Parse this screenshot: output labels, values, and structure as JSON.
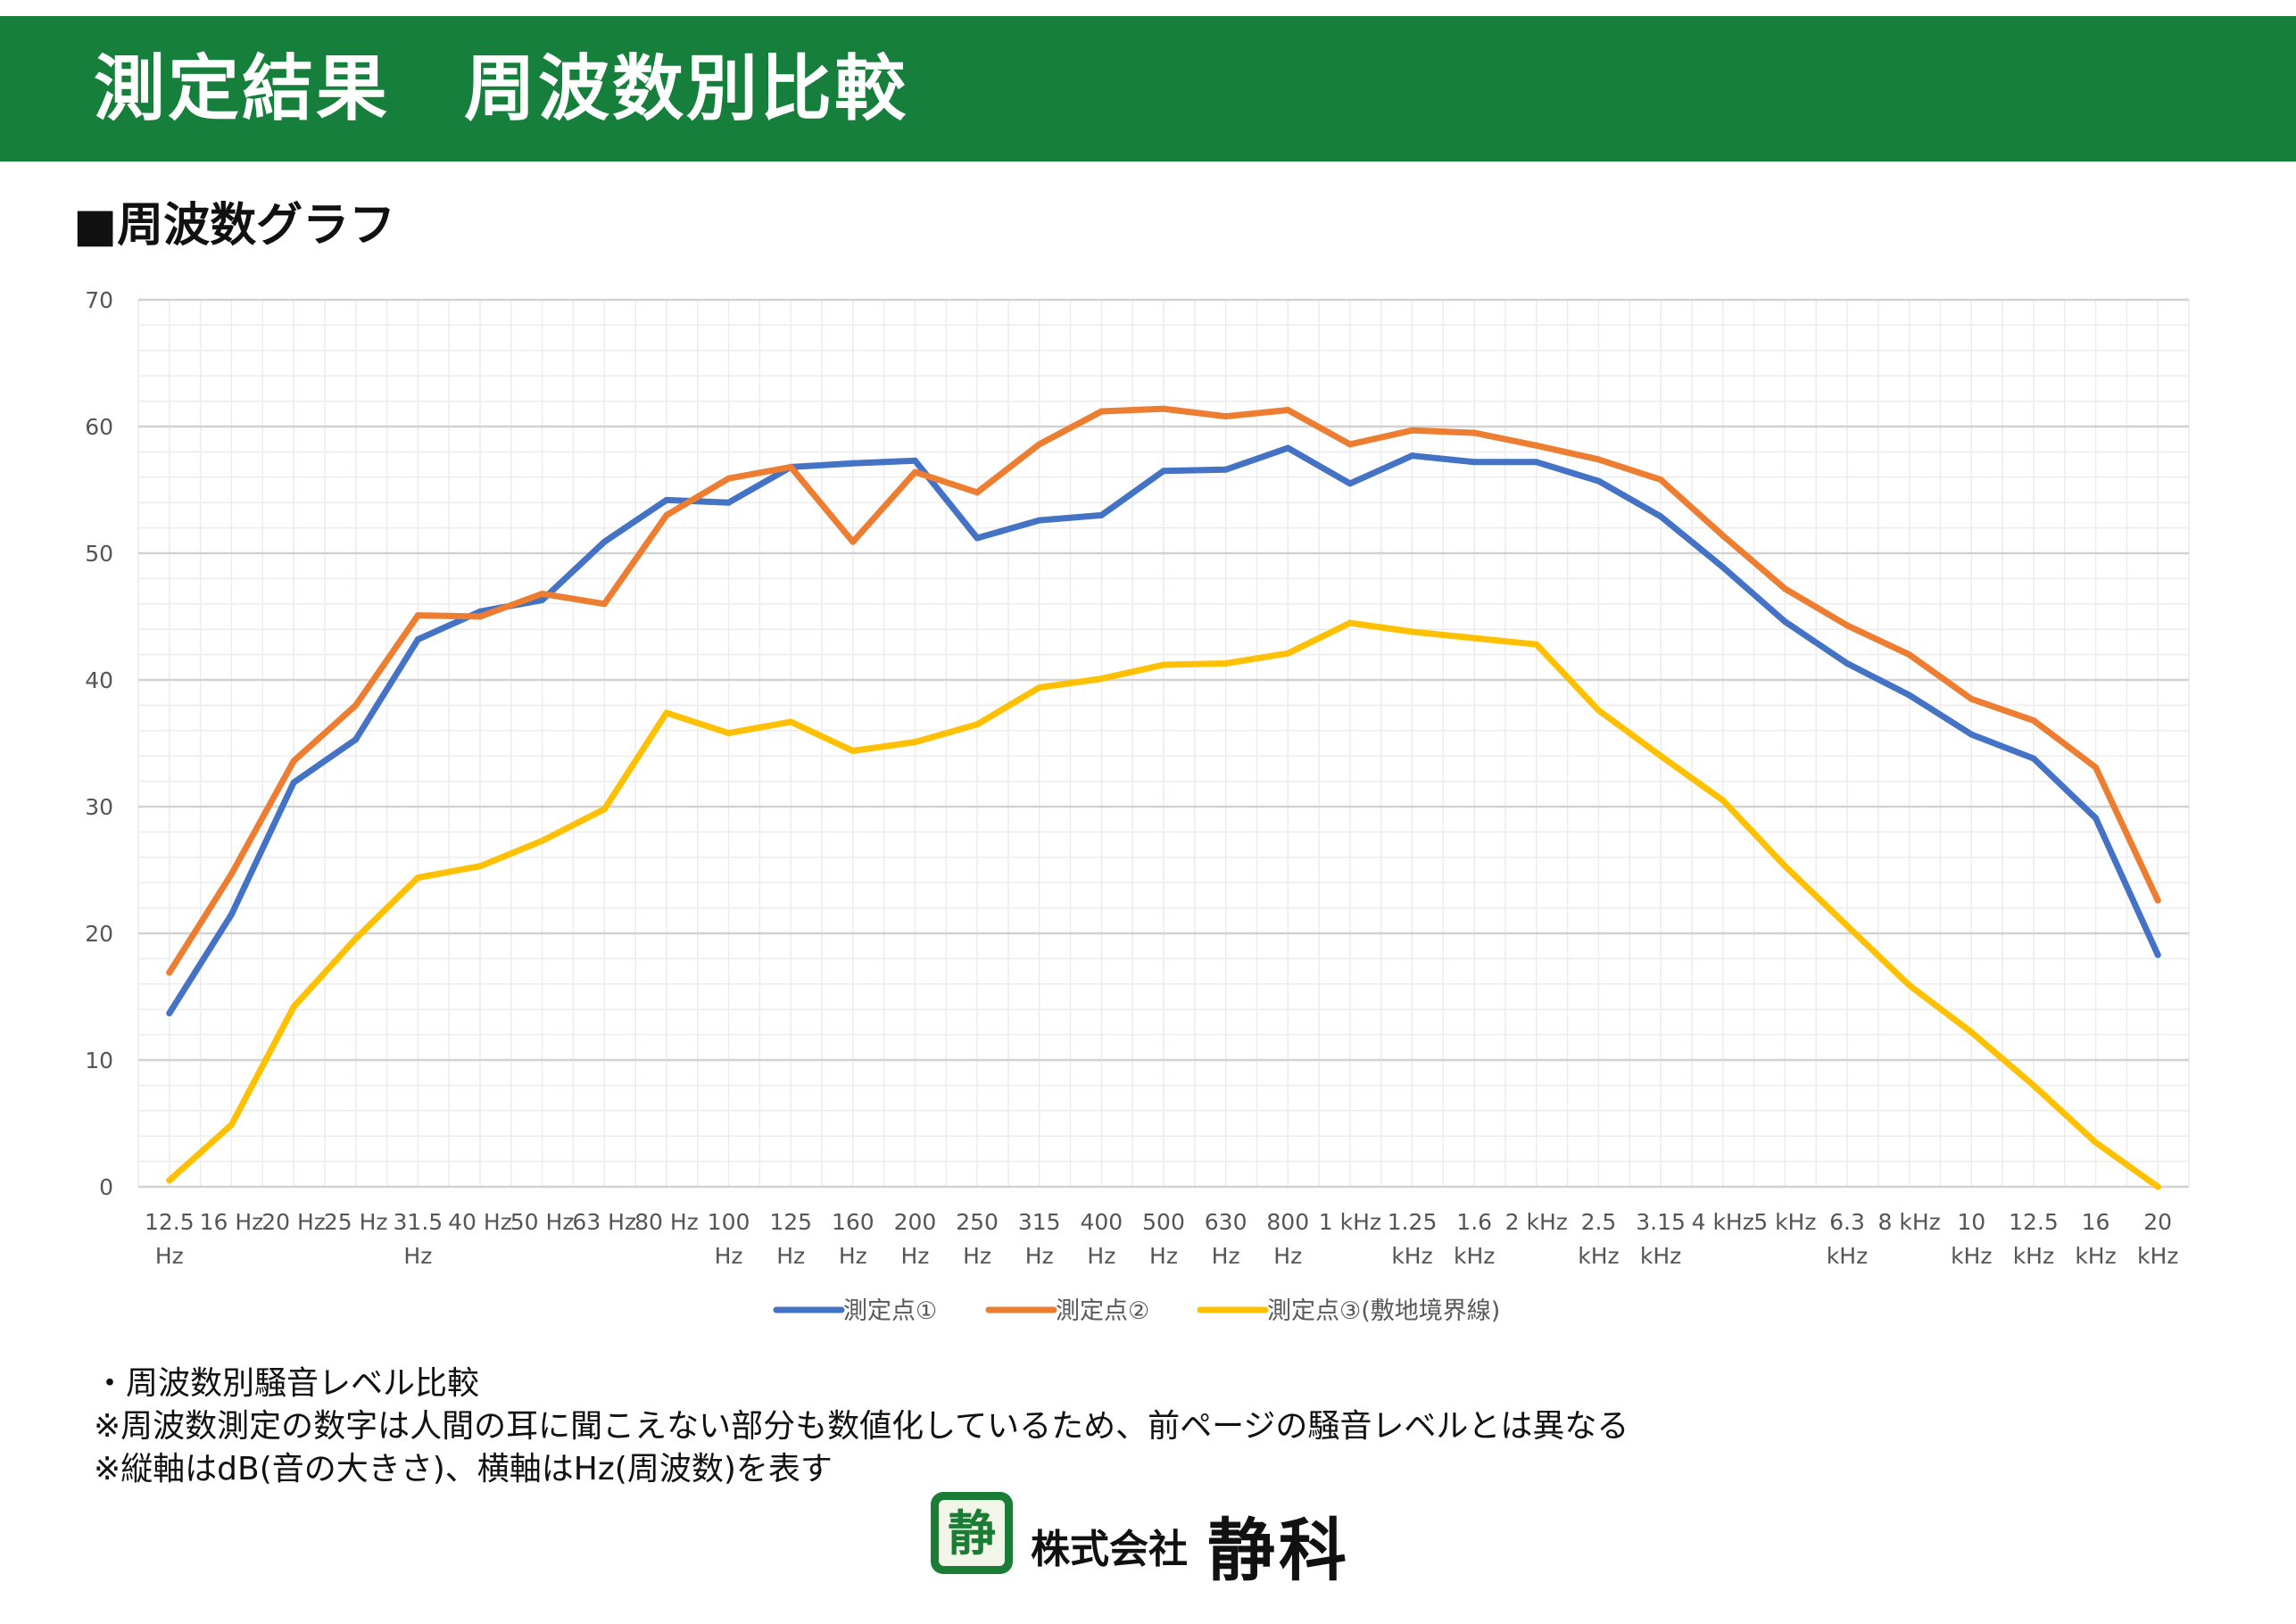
{
  "header": {
    "title": "測定結果　周波数別比較"
  },
  "section": {
    "heading": "■周波数グラフ"
  },
  "chart_data": {
    "type": "line",
    "title": "",
    "xlabel": "",
    "ylabel": "",
    "ylim": [
      0,
      70
    ],
    "y_ticks": [
      0,
      10,
      20,
      30,
      40,
      50,
      60,
      70
    ],
    "grid": true,
    "legend_position": "bottom",
    "categories": [
      [
        "12.5",
        "Hz"
      ],
      [
        "16 Hz"
      ],
      [
        "20 Hz"
      ],
      [
        "25 Hz"
      ],
      [
        "31.5",
        "Hz"
      ],
      [
        "40 Hz"
      ],
      [
        "50 Hz"
      ],
      [
        "63 Hz"
      ],
      [
        "80 Hz"
      ],
      [
        "100",
        "Hz"
      ],
      [
        "125",
        "Hz"
      ],
      [
        "160",
        "Hz"
      ],
      [
        "200",
        "Hz"
      ],
      [
        "250",
        "Hz"
      ],
      [
        "315",
        "Hz"
      ],
      [
        "400",
        "Hz"
      ],
      [
        "500",
        "Hz"
      ],
      [
        "630",
        "Hz"
      ],
      [
        "800",
        "Hz"
      ],
      [
        "1 kHz"
      ],
      [
        "1.25",
        "kHz"
      ],
      [
        "1.6",
        "kHz"
      ],
      [
        "2 kHz"
      ],
      [
        "2.5",
        "kHz"
      ],
      [
        "3.15",
        "kHz"
      ],
      [
        "4 kHz"
      ],
      [
        "5 kHz"
      ],
      [
        "6.3",
        "kHz"
      ],
      [
        "8 kHz"
      ],
      [
        "10",
        "kHz"
      ],
      [
        "12.5",
        "kHz"
      ],
      [
        "16",
        "kHz"
      ],
      [
        "20",
        "kHz"
      ]
    ],
    "series": [
      {
        "name": "測定点①",
        "color": "#4472c4",
        "values": [
          13.7,
          21.5,
          31.9,
          35.3,
          43.2,
          45.4,
          46.3,
          50.9,
          54.2,
          54.0,
          56.8,
          57.1,
          57.3,
          51.2,
          52.6,
          53.0,
          56.5,
          56.6,
          58.3,
          55.5,
          57.7,
          57.2,
          57.2,
          55.7,
          52.9,
          48.9,
          44.6,
          41.3,
          38.8,
          35.7,
          33.8,
          29.1,
          18.3
        ]
      },
      {
        "name": "測定点②",
        "color": "#ed7d31",
        "values": [
          16.9,
          24.7,
          33.6,
          38.0,
          45.1,
          45.0,
          46.8,
          46.0,
          53.0,
          55.9,
          56.8,
          50.9,
          56.4,
          54.8,
          58.6,
          61.2,
          61.4,
          60.8,
          61.3,
          58.6,
          59.7,
          59.5,
          58.5,
          57.4,
          55.8,
          51.4,
          47.2,
          44.3,
          42.0,
          38.5,
          36.8,
          33.1,
          22.6
        ]
      },
      {
        "name": "測定点③(敷地境界線)",
        "color": "#ffc000",
        "values": [
          0.5,
          4.9,
          14.2,
          19.6,
          24.4,
          25.3,
          27.3,
          29.8,
          37.4,
          35.8,
          36.7,
          34.4,
          35.1,
          36.5,
          39.4,
          40.1,
          41.2,
          41.3,
          42.1,
          44.5,
          43.8,
          43.3,
          42.8,
          37.6,
          34.0,
          30.5,
          25.3,
          20.6,
          15.9,
          12.2,
          8.0,
          3.5,
          0.0
        ]
      }
    ]
  },
  "notes": [
    "・周波数別騒音レベル比較",
    "※周波数測定の数字は人間の耳に聞こえない部分も数値化しているため、前ページの騒音レベルとは異なる",
    "※縦軸はdB(音の大きさ)、横軸はHz(周波数)を表す"
  ],
  "logo": {
    "mark": "静",
    "corp": "株式会社",
    "name": "静科",
    "color": "#1b7c35"
  }
}
